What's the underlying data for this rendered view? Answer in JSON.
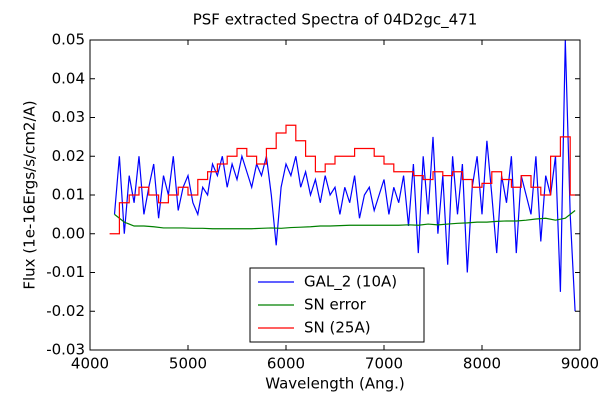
{
  "chart_data": {
    "type": "line",
    "title": "PSF extracted Spectra of 04D2gc_471",
    "title_color": "#ff0000",
    "xlabel": "Wavelength (Ang.)",
    "ylabel": "Flux (1e-16Ergs/s/cm2/A)",
    "xlim": [
      4000,
      9000
    ],
    "xticks": [
      4000,
      5000,
      6000,
      7000,
      8000,
      9000
    ],
    "ylim": [
      -0.03,
      0.05
    ],
    "yticks": [
      -0.03,
      -0.02,
      -0.01,
      {
        "value": 0,
        "label": "0.00"
      },
      0.01,
      0.02,
      0.03,
      0.04,
      0.05
    ],
    "legend": "lower center",
    "series": [
      {
        "name": "GAL_2 (10A)",
        "color": "#0000ff",
        "x": [
          4250,
          4300,
          4350,
          4400,
          4450,
          4500,
          4550,
          4600,
          4650,
          4700,
          4750,
          4800,
          4850,
          4900,
          4950,
          5000,
          5050,
          5100,
          5150,
          5200,
          5250,
          5300,
          5350,
          5400,
          5450,
          5500,
          5550,
          5600,
          5650,
          5700,
          5750,
          5800,
          5850,
          5900,
          5950,
          6000,
          6050,
          6100,
          6150,
          6200,
          6250,
          6300,
          6350,
          6400,
          6450,
          6500,
          6550,
          6600,
          6650,
          6700,
          6750,
          6800,
          6850,
          6900,
          6950,
          7000,
          7050,
          7100,
          7150,
          7200,
          7250,
          7300,
          7350,
          7400,
          7450,
          7500,
          7550,
          7600,
          7650,
          7700,
          7750,
          7800,
          7850,
          7900,
          7950,
          8000,
          8050,
          8100,
          8150,
          8200,
          8250,
          8300,
          8350,
          8400,
          8450,
          8500,
          8550,
          8600,
          8650,
          8700,
          8750,
          8800,
          8850,
          8900,
          8950
        ],
        "values": [
          0.005,
          0.02,
          0.0,
          0.015,
          0.008,
          0.02,
          0.005,
          0.012,
          0.018,
          0.004,
          0.015,
          0.01,
          0.02,
          0.006,
          0.012,
          0.015,
          0.008,
          0.005,
          0.012,
          0.01,
          0.018,
          0.015,
          0.02,
          0.012,
          0.018,
          0.014,
          0.02,
          0.016,
          0.012,
          0.018,
          0.015,
          0.02,
          0.01,
          -0.003,
          0.012,
          0.018,
          0.015,
          0.02,
          0.012,
          0.016,
          0.01,
          0.014,
          0.008,
          0.015,
          0.01,
          0.012,
          0.005,
          0.012,
          0.008,
          0.015,
          0.004,
          0.01,
          0.012,
          0.006,
          0.01,
          0.014,
          0.005,
          0.012,
          0.008,
          0.015,
          0.002,
          0.018,
          -0.005,
          0.02,
          0.005,
          0.025,
          0.0,
          0.015,
          -0.008,
          0.02,
          0.005,
          0.018,
          -0.01,
          0.012,
          0.02,
          0.005,
          0.024,
          0.01,
          -0.005,
          0.015,
          0.008,
          0.02,
          -0.005,
          0.015,
          0.01,
          0.005,
          0.02,
          -0.002,
          0.015,
          0.01,
          0.02,
          -0.015,
          0.05,
          0.005,
          -0.02
        ]
      },
      {
        "name": "SN error",
        "color": "#008000",
        "x": [
          4250,
          4350,
          4450,
          4550,
          4650,
          4750,
          4850,
          4950,
          5050,
          5150,
          5250,
          5350,
          5450,
          5550,
          5650,
          5750,
          5850,
          5950,
          6050,
          6150,
          6250,
          6350,
          6450,
          6550,
          6650,
          6750,
          6850,
          6950,
          7050,
          7150,
          7250,
          7350,
          7450,
          7550,
          7650,
          7750,
          7850,
          7950,
          8050,
          8150,
          8250,
          8350,
          8450,
          8550,
          8650,
          8750,
          8850,
          8950
        ],
        "values": [
          0.005,
          0.003,
          0.002,
          0.002,
          0.0018,
          0.0015,
          0.0015,
          0.0015,
          0.0014,
          0.0014,
          0.0013,
          0.0013,
          0.0013,
          0.0013,
          0.0013,
          0.0014,
          0.0015,
          0.0014,
          0.0016,
          0.0017,
          0.0018,
          0.002,
          0.002,
          0.0021,
          0.0022,
          0.0022,
          0.0022,
          0.0022,
          0.0022,
          0.0022,
          0.0023,
          0.0022,
          0.0025,
          0.0023,
          0.0025,
          0.0027,
          0.0028,
          0.003,
          0.003,
          0.0032,
          0.0033,
          0.0033,
          0.0035,
          0.0038,
          0.004,
          0.0035,
          0.004,
          0.006
        ]
      },
      {
        "name": "SN (25A)",
        "color": "#ff0000",
        "steps": true,
        "x": [
          4250,
          4350,
          4450,
          4550,
          4650,
          4750,
          4850,
          4950,
          5050,
          5150,
          5250,
          5350,
          5450,
          5550,
          5650,
          5750,
          5850,
          5950,
          6050,
          6150,
          6250,
          6350,
          6450,
          6550,
          6650,
          6750,
          6850,
          6950,
          7050,
          7150,
          7250,
          7350,
          7450,
          7550,
          7650,
          7750,
          7850,
          7950,
          8050,
          8150,
          8250,
          8350,
          8450,
          8550,
          8650,
          8750,
          8850,
          8950
        ],
        "values": [
          0.0,
          0.008,
          0.01,
          0.012,
          0.01,
          0.008,
          0.01,
          0.012,
          0.01,
          0.014,
          0.016,
          0.018,
          0.02,
          0.022,
          0.02,
          0.018,
          0.022,
          0.026,
          0.028,
          0.024,
          0.02,
          0.016,
          0.018,
          0.02,
          0.02,
          0.022,
          0.022,
          0.02,
          0.018,
          0.016,
          0.016,
          0.015,
          0.014,
          0.016,
          0.015,
          0.016,
          0.014,
          0.012,
          0.013,
          0.016,
          0.014,
          0.012,
          0.015,
          0.012,
          0.01,
          0.02,
          0.025,
          0.01
        ]
      }
    ]
  }
}
